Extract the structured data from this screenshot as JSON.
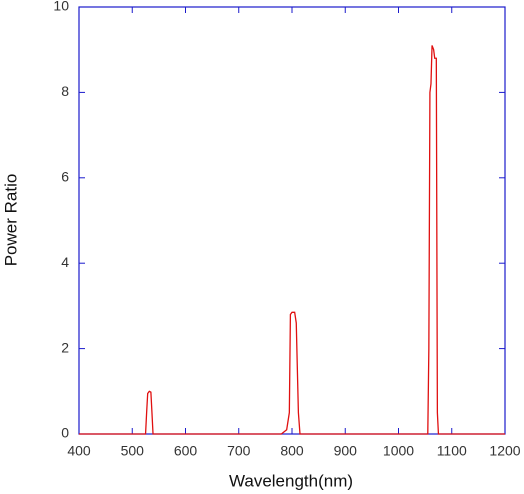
{
  "chart_data": {
    "type": "line",
    "x_label": "Wavelength(nm)",
    "y_label": "Power Ratio",
    "xlim": [
      400,
      1200
    ],
    "xticks": [
      400,
      500,
      600,
      700,
      800,
      900,
      1000,
      1100,
      1200
    ],
    "ylim": [
      0,
      10
    ],
    "yticks": [
      0,
      2,
      4,
      6,
      8,
      10
    ],
    "axis_color": "#1a1acc",
    "x": [
      400,
      525,
      527,
      529,
      532,
      535,
      537,
      539,
      780,
      790,
      795,
      797,
      800,
      805,
      808,
      812,
      815,
      1055,
      1057,
      1059,
      1061,
      1063,
      1066,
      1068,
      1071,
      1073,
      1075,
      1200
    ],
    "series": [
      {
        "color": "#e01010",
        "values": [
          0,
          0,
          0.5,
          0.95,
          1.0,
          0.98,
          0.5,
          0,
          0,
          0.1,
          0.5,
          2.8,
          2.85,
          2.85,
          2.6,
          0.5,
          0,
          0,
          2,
          8.0,
          8.2,
          9.1,
          9.0,
          8.8,
          8.8,
          0.5,
          0,
          0
        ]
      }
    ]
  }
}
